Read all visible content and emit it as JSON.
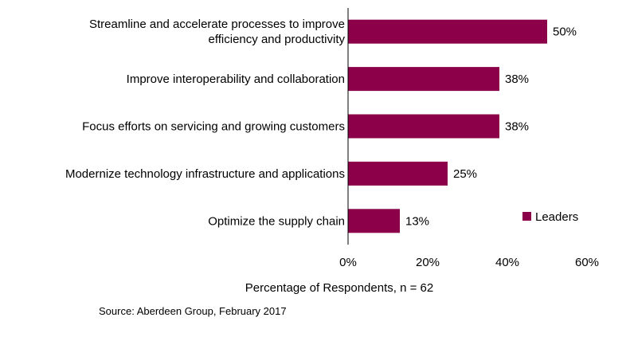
{
  "chart_data": {
    "type": "bar",
    "orientation": "horizontal",
    "categories": [
      [
        "Streamline and accelerate processes to improve",
        "efficiency and productivity"
      ],
      [
        "Improve interoperability and collaboration"
      ],
      [
        "Focus efforts on servicing and growing customers"
      ],
      [
        "Modernize technology infrastructure and applications"
      ],
      [
        "Optimize the supply chain"
      ]
    ],
    "series": [
      {
        "name": "Leaders",
        "values": [
          50,
          38,
          38,
          25,
          13
        ],
        "color": "#8b0048"
      }
    ],
    "value_labels": [
      "50%",
      "38%",
      "38%",
      "25%",
      "13%"
    ],
    "xlim": [
      0,
      60
    ],
    "xticks": [
      0,
      20,
      40,
      60
    ],
    "xtick_labels": [
      "0%",
      "20%",
      "40%",
      "60%"
    ],
    "xlabel": "Percentage of Respondents, n = 62",
    "ylabel": "",
    "title": "",
    "grid": false,
    "legend": {
      "position": "bottom-right"
    }
  },
  "source": "Source: Aberdeen Group, February 2017"
}
